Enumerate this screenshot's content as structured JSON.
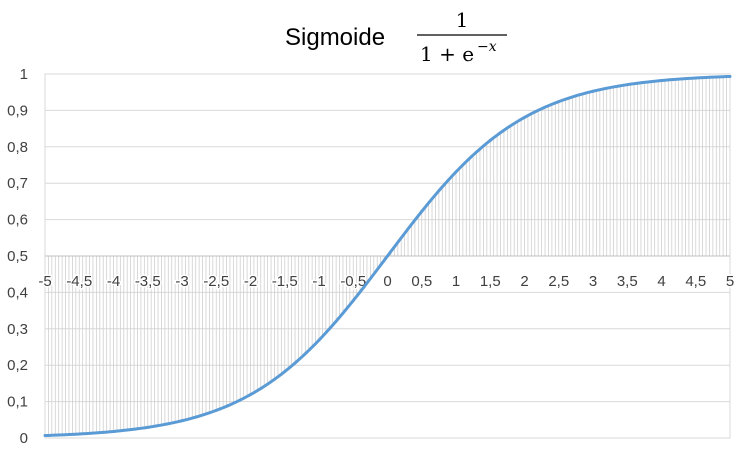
{
  "chart_data": {
    "type": "line",
    "title": "Sigmoide",
    "formula": {
      "numerator": "1",
      "denominator": "1 + e",
      "exponent": "−x"
    },
    "xlabel": "",
    "ylabel": "",
    "xlim": [
      -5,
      5
    ],
    "ylim": [
      0,
      1
    ],
    "x_ticks": [
      "-5",
      "-4,5",
      "-4",
      "-3,5",
      "-3",
      "-2,5",
      "-2",
      "-1,5",
      "-1",
      "-0,5",
      "0",
      "0,5",
      "1",
      "1,5",
      "2",
      "2,5",
      "3",
      "3,5",
      "4",
      "4,5",
      "5"
    ],
    "x_tick_values": [
      -5,
      -4.5,
      -4,
      -3.5,
      -3,
      -2.5,
      -2,
      -1.5,
      -1,
      -0.5,
      0,
      0.5,
      1,
      1.5,
      2,
      2.5,
      3,
      3.5,
      4,
      4.5,
      5
    ],
    "x_axis_crosses_y": 0.5,
    "y_ticks": [
      "0",
      "0,1",
      "0,2",
      "0,3",
      "0,4",
      "0,5",
      "0,6",
      "0,7",
      "0,8",
      "0,9",
      "1"
    ],
    "y_tick_values": [
      0,
      0.1,
      0.2,
      0.3,
      0.4,
      0.5,
      0.6,
      0.7,
      0.8,
      0.9,
      1
    ],
    "grid": true,
    "drop_lines": true,
    "series": [
      {
        "color": "#5b9bd5",
        "x": [
          -5,
          -4.5,
          -4,
          -3.5,
          -3,
          -2.5,
          -2,
          -1.5,
          -1,
          -0.5,
          0,
          0.5,
          1,
          1.5,
          2,
          2.5,
          3,
          3.5,
          4,
          4.5,
          5
        ],
        "y": [
          0.0067,
          0.011,
          0.018,
          0.0293,
          0.0474,
          0.0759,
          0.1192,
          0.1824,
          0.2689,
          0.3775,
          0.5,
          0.6225,
          0.7311,
          0.8176,
          0.8808,
          0.9241,
          0.9526,
          0.9707,
          0.982,
          0.989,
          0.9933
        ]
      }
    ]
  }
}
